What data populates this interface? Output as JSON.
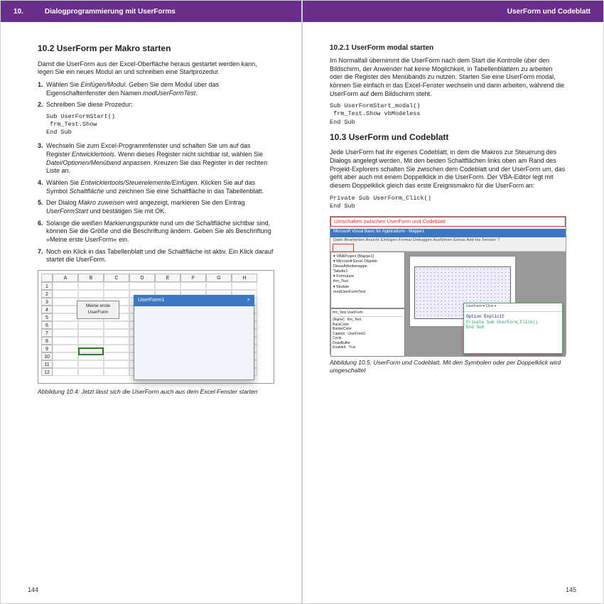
{
  "colors": {
    "header_bg": "#6a2d8c",
    "header_text": "#ffffff",
    "accent_blue": "#3a78c4",
    "red_highlight": "#d33333"
  },
  "typography": {
    "body_fontsize_pt": 9,
    "h2_fontsize_pt": 12,
    "h3_fontsize_pt": 10,
    "caption_fontsize_pt": 8.5,
    "code_font": "Courier New"
  },
  "left": {
    "header_num": "10.",
    "header_title": "Dialogprogrammierung mit UserForms",
    "h2": "10.2   UserForm per Makro starten",
    "intro": "Damit die UserForm aus der Excel-Oberfläche heraus gestartet werden kann, legen Sie ein neues Modul an und schreiben eine Startprozedur.",
    "steps": [
      "Wählen Sie <em>Einfügen/Modul</em>. Geben Sie dem Modul über das Eigenschaftenfenster den Namen <em>modUserFormTest</em>.",
      "Schreiben Sie diese Prozedur:",
      "Wechseln Sie zum Excel-Programmfenster und schalten Sie um auf das Register <em>Entwicklertools</em>. Wenn dieses Register nicht sichtbar ist, wählen Sie <em>Datei/Optionen/Menüband anpassen</em>. Kreuzen Sie das Register in der rechten Liste an.",
      "Wählen Sie <em>Entwicklertools/Steuerelemente/Einfügen</em>. Klicken Sie auf das Symbol <em>Schaltfläche</em> und zeichnen Sie eine Schaltfläche in das Tabellenblatt.",
      "Der Dialog <em>Makro zuweisen</em> wird angezeigt, markieren Sie den Eintrag <em>UserFormStart</em> und bestätigen Sie mit OK.",
      "Solange die weißen Markierungspunkte rund um die Schaltfläche sichtbar sind, können Sie die Größe und die Beschriftung ändern. Geben Sie als Beschriftung »Meine erste UserForm« ein.",
      "Noch ein Klick in das Tabellenblatt und die Schaltfläche ist aktiv. Ein Klick darauf startet die UserForm."
    ],
    "step2_code": "Sub UserFormStart()\n frm_Test.Show\nEnd Sub",
    "fig": {
      "cols": [
        "A",
        "B",
        "C",
        "D",
        "E",
        "F",
        "G",
        "H"
      ],
      "rows": [
        1,
        2,
        3,
        4,
        5,
        6,
        7,
        8,
        9,
        10,
        11,
        12
      ],
      "button_label": "Meine erste UserForm",
      "uf_title": "UserForm1",
      "uf_close": "×"
    },
    "caption": "Abbildung 10.4: Jetzt lässt sich die UserForm auch aus dem Excel-Fenster starten",
    "pagenum": "144"
  },
  "right": {
    "header_title": "UserForm und Codeblatt",
    "h3": "10.2.1   UserForm modal starten",
    "p1": "Im Normalfall übernimmt die UserForm nach dem Start die Kontrolle über den Bildschirm, der Anwender hat keine Möglichkeit, in Tabellenblättern zu arbeiten oder die Register des Menübands zu nutzen. Starten Sie eine UserForm modal, können Sie einfach in das Excel-Fenster wechseln und darin arbeiten, während die UserForm auf dem Bildschirm steht.",
    "code1": "Sub UserFormStart_modal()\n frm_Test.Show vbModeless\nEnd Sub",
    "h2": "10.3   UserForm und Codeblatt",
    "p2": "Jede UserForm hat ihr eigenes Codeblatt, in dem die Makros zur Steuerung des Dialogs angelegt werden. Mit den beiden Schaltflächen links oben am Rand des Projekt-Explorers schalten Sie zwischen dem Codeblatt und der UserForm um, das geht aber auch mit einem Doppelklick in die UserForm. Der VBA-Editor legt mit diesem Doppelklick gleich das erste Ereignismakro für die UserForm an:",
    "code2": "Private Sub UserForm_Click()\nEnd Sub",
    "fig": {
      "callout": "Umschalten zwischen UserForm und Codeblatt",
      "vba_title": "Microsoft Visual Basic for Applications - Mappe1",
      "vba_menu": "Datei   Bearbeiten   Ansicht   Einfügen   Format   Debuggen   Ausführen   Extras   Add-Ins   Fenster   ?",
      "tree": [
        "▾ VBAProject (Mappe1)",
        "  ▾ Microsoft Excel Objekte",
        "     DieseArbeitsmappe",
        "     Tabelle1",
        "  ▾ Formulare",
        "     frm_Test",
        "  ▾ Module",
        "     modUserFormTest"
      ],
      "code_hdr": "UserForm        ▾    Click        ▾",
      "code_lines": [
        "Option Explicit",
        "",
        "Private Sub UserForm_Click()",
        "End Sub"
      ]
    },
    "caption": "Abbildung 10.5: UserForm und Codeblatt. Mit den Symbolen oder per Doppelklick wird umgeschaltet",
    "pagenum": "145"
  }
}
